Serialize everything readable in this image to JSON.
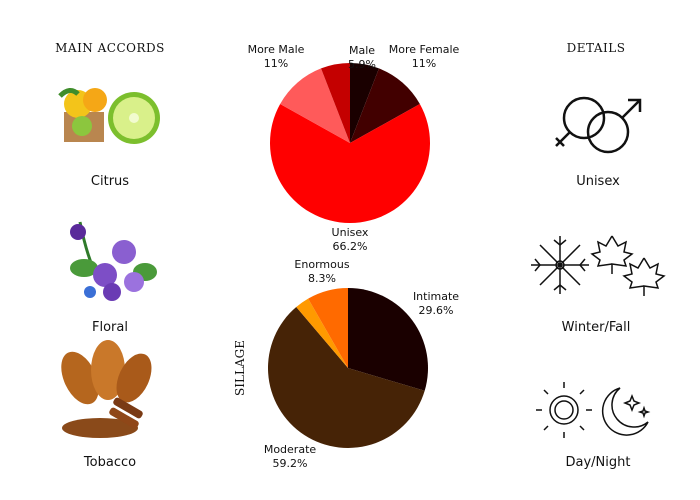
{
  "left": {
    "heading": "MAIN ACCORDS",
    "items": [
      {
        "label": "Citrus",
        "icon": "citrus-image"
      },
      {
        "label": "Floral",
        "icon": "violet-flowers-image"
      },
      {
        "label": "Tobacco",
        "icon": "tobacco-leaves-image"
      }
    ]
  },
  "right": {
    "heading": "DETAILS",
    "items": [
      {
        "label": "Unisex",
        "icon": "gender-symbols-icon"
      },
      {
        "label": "Winter/Fall",
        "icon": "snowflake-maple-leaves-icon"
      },
      {
        "label": "Day/Night",
        "icon": "sun-moon-icon"
      }
    ]
  },
  "chart_data": [
    {
      "type": "pie",
      "title": "",
      "slices": [
        {
          "label": "",
          "value": 5.9,
          "color": "#1a0000"
        },
        {
          "label": "More Female",
          "value": 11,
          "display": "11%",
          "color": "#420000"
        },
        {
          "label": "Unisex",
          "value": 66.2,
          "display": "66.2%",
          "color": "#ff0000"
        },
        {
          "label": "More Male",
          "value": 11,
          "display": "11%",
          "color": "#ff5a5a"
        },
        {
          "label": "Male",
          "value": 5.9,
          "display": "5.9%",
          "color": "#c40000"
        }
      ]
    },
    {
      "type": "pie",
      "title": "SILLAGE",
      "slices": [
        {
          "label": "Intimate",
          "value": 29.6,
          "display": "29.6%",
          "color": "#1a0000"
        },
        {
          "label": "Moderate",
          "value": 59.2,
          "display": "59.2%",
          "color": "#462306"
        },
        {
          "label": "",
          "value": 2.9,
          "color": "#ff9a00"
        },
        {
          "label": "Enormous",
          "value": 8.3,
          "display": "8.3%",
          "color": "#ff6a00"
        }
      ]
    }
  ]
}
